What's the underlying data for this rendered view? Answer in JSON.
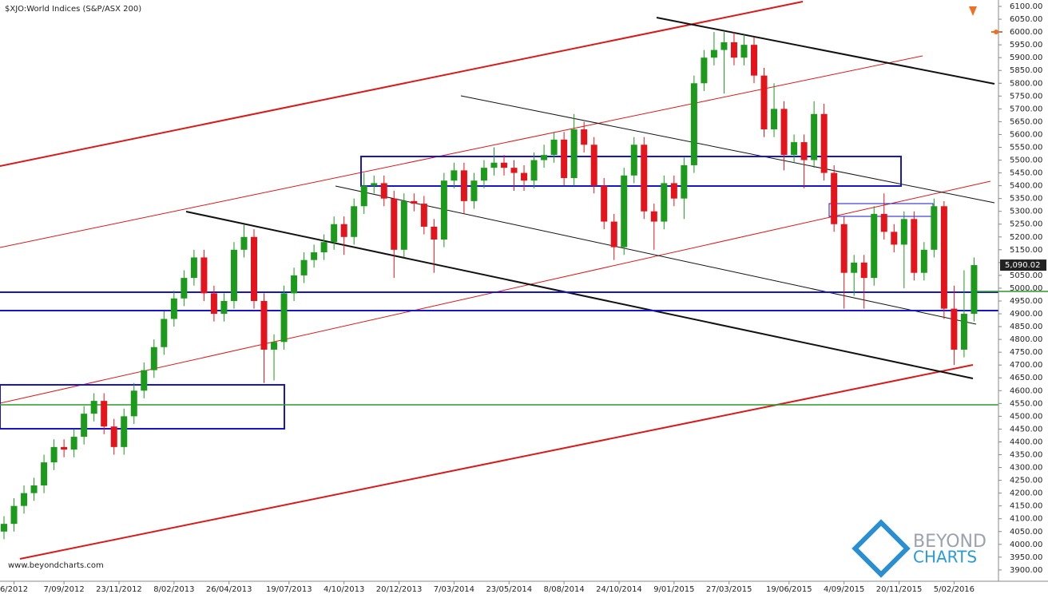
{
  "chart_data": {
    "type": "candlestick",
    "title": "$XJO:World Indices (S&P/ASX 200)",
    "watermark": "www.beyondcharts.com",
    "logo": [
      "BEYOND",
      "CHARTS"
    ],
    "up_color": "#1b9a1b",
    "down_color": "#e3141b",
    "open": [
      4050,
      4080,
      4150,
      4200,
      4230,
      4320,
      4380,
      4370,
      4420,
      4510,
      4560,
      4460,
      4380,
      4500,
      4600,
      4680,
      4770,
      4880,
      4960,
      5040,
      5120,
      4980,
      4900,
      4950,
      5150,
      5200,
      4950,
      4760,
      4790,
      4980,
      5050,
      5110,
      5140,
      5180,
      5250,
      5200,
      5320,
      5400,
      5410,
      5350,
      5150,
      5340,
      5330,
      5240,
      5190,
      5420,
      5460,
      5340,
      5420,
      5470,
      5490,
      5470,
      5450,
      5420,
      5500,
      5520,
      5580,
      5430,
      5620,
      5560,
      5400,
      5260,
      5160,
      5440,
      5560,
      5300,
      5260,
      5410,
      5350,
      5480,
      5800,
      5900,
      5930,
      5960,
      5900,
      5950,
      5830,
      5620,
      5700,
      5520,
      5570,
      5500,
      5680,
      5450,
      5250,
      5060,
      5100,
      5040,
      5290,
      5220,
      5170,
      5270,
      5060,
      5150,
      5320,
      4920,
      4760,
      4900
    ],
    "high": [
      4110,
      4180,
      4230,
      4260,
      4350,
      4410,
      4410,
      4450,
      4540,
      4590,
      4590,
      4490,
      4530,
      4630,
      4710,
      4800,
      4910,
      4990,
      5070,
      5150,
      5150,
      5010,
      4980,
      5180,
      5250,
      5230,
      4980,
      4820,
      5010,
      5080,
      5140,
      5170,
      5210,
      5280,
      5280,
      5350,
      5450,
      5440,
      5440,
      5380,
      5370,
      5370,
      5360,
      5270,
      5450,
      5490,
      5490,
      5450,
      5500,
      5550,
      5520,
      5500,
      5480,
      5530,
      5560,
      5610,
      5610,
      5680,
      5650,
      5590,
      5430,
      5290,
      5470,
      5590,
      5590,
      5330,
      5440,
      5440,
      5510,
      5830,
      5930,
      6000,
      6000,
      6000,
      5990,
      5980,
      5860,
      5800,
      5730,
      5600,
      5600,
      5730,
      5720,
      5480,
      5280,
      5130,
      5130,
      5320,
      5370,
      5250,
      5300,
      5300,
      5180,
      5350,
      5340,
      5010,
      5070,
      5120
    ],
    "low": [
      4020,
      4050,
      4120,
      4170,
      4200,
      4290,
      4340,
      4340,
      4390,
      4480,
      4430,
      4350,
      4350,
      4470,
      4570,
      4650,
      4740,
      4850,
      4930,
      5010,
      4950,
      4870,
      4870,
      4920,
      5120,
      4920,
      4630,
      4640,
      4760,
      4950,
      5020,
      5080,
      5110,
      5150,
      5130,
      5170,
      5290,
      5370,
      5320,
      5040,
      5120,
      5300,
      5210,
      5060,
      5160,
      5390,
      5290,
      5310,
      5390,
      5440,
      5440,
      5380,
      5380,
      5390,
      5470,
      5490,
      5400,
      5400,
      5530,
      5370,
      5230,
      5110,
      5130,
      5410,
      5270,
      5150,
      5230,
      5320,
      5270,
      5450,
      5770,
      5870,
      5760,
      5870,
      5870,
      5800,
      5590,
      5590,
      5460,
      5490,
      5390,
      5470,
      5420,
      5220,
      4920,
      4970,
      4920,
      5010,
      5190,
      5140,
      5000,
      5030,
      5030,
      5120,
      4880,
      4700,
      4730,
      4870
    ],
    "close": [
      4080,
      4150,
      4200,
      4230,
      4320,
      4380,
      4370,
      4420,
      4510,
      4560,
      4460,
      4380,
      4500,
      4600,
      4680,
      4770,
      4880,
      4960,
      5040,
      5120,
      4980,
      4900,
      4950,
      5150,
      5200,
      4950,
      4760,
      4790,
      4980,
      5050,
      5110,
      5140,
      5180,
      5250,
      5200,
      5320,
      5400,
      5410,
      5350,
      5150,
      5340,
      5330,
      5240,
      5190,
      5420,
      5460,
      5340,
      5420,
      5470,
      5490,
      5470,
      5450,
      5420,
      5500,
      5520,
      5580,
      5430,
      5620,
      5560,
      5400,
      5260,
      5160,
      5440,
      5560,
      5300,
      5260,
      5410,
      5350,
      5480,
      5800,
      5900,
      5930,
      5960,
      5900,
      5950,
      5830,
      5620,
      5700,
      5520,
      5570,
      5500,
      5680,
      5450,
      5250,
      5060,
      5100,
      5040,
      5290,
      5220,
      5170,
      5270,
      5060,
      5150,
      5320,
      4920,
      4760,
      4900,
      5090.02
    ],
    "last_price": {
      "value": 5090.02,
      "label": "5,090.02"
    },
    "xticks": [
      {
        "value": 1,
        "label": "6/2012"
      },
      {
        "value": 6,
        "label": "7/09/2012"
      },
      {
        "value": 11.5,
        "label": "23/11/2012"
      },
      {
        "value": 17,
        "label": "8/02/2013"
      },
      {
        "value": 22.5,
        "label": "26/04/2013"
      },
      {
        "value": 28.5,
        "label": "19/07/2013"
      },
      {
        "value": 34,
        "label": "4/10/2013"
      },
      {
        "value": 39.5,
        "label": "20/12/2013"
      },
      {
        "value": 45,
        "label": "7/03/2014"
      },
      {
        "value": 50.5,
        "label": "23/05/2014"
      },
      {
        "value": 56,
        "label": "8/08/2014"
      },
      {
        "value": 61.5,
        "label": "24/10/2014"
      },
      {
        "value": 67,
        "label": "9/01/2015"
      },
      {
        "value": 72.5,
        "label": "27/03/2015"
      },
      {
        "value": 78.5,
        "label": "19/06/2015"
      },
      {
        "value": 84,
        "label": "4/09/2015"
      },
      {
        "value": 89.5,
        "label": "20/11/2015"
      },
      {
        "value": 95,
        "label": "5/02/2016"
      }
    ],
    "ylim": [
      3856,
      6125
    ],
    "yticks": [
      {
        "value": 3900,
        "label": "3900.00"
      },
      {
        "value": 3950,
        "label": "3950.00"
      },
      {
        "value": 4000,
        "label": "4000.00"
      },
      {
        "value": 4050,
        "label": "4050.00"
      },
      {
        "value": 4100,
        "label": "4100.00"
      },
      {
        "value": 4150,
        "label": "4150.00"
      },
      {
        "value": 4200,
        "label": "4200.00"
      },
      {
        "value": 4250,
        "label": "4250.00"
      },
      {
        "value": 4300,
        "label": "4300.00"
      },
      {
        "value": 4350,
        "label": "4350.00"
      },
      {
        "value": 4400,
        "label": "4400.00"
      },
      {
        "value": 4450,
        "label": "4450.00"
      },
      {
        "value": 4500,
        "label": "4500.00"
      },
      {
        "value": 4550,
        "label": "4550.00"
      },
      {
        "value": 4600,
        "label": "4600.00"
      },
      {
        "value": 4650,
        "label": "4650.00"
      },
      {
        "value": 4700,
        "label": "4700.00"
      },
      {
        "value": 4750,
        "label": "4750.00"
      },
      {
        "value": 4800,
        "label": "4800.00"
      },
      {
        "value": 4850,
        "label": "4850.00"
      },
      {
        "value": 4900,
        "label": "4900.00"
      },
      {
        "value": 4950,
        "label": "4950.00"
      },
      {
        "value": 5000,
        "label": "5000.00"
      },
      {
        "value": 5050,
        "label": "5050.00"
      },
      {
        "value": 5100,
        "label": "5100.00"
      },
      {
        "value": 5150,
        "label": "5150.00"
      },
      {
        "value": 5200,
        "label": "5200.00"
      },
      {
        "value": 5250,
        "label": "5250.00"
      },
      {
        "value": 5300,
        "label": "5300.00"
      },
      {
        "value": 5350,
        "label": "5350.00"
      },
      {
        "value": 5400,
        "label": "5400.00"
      },
      {
        "value": 5450,
        "label": "5450.00"
      },
      {
        "value": 5500,
        "label": "5500.00"
      },
      {
        "value": 5550,
        "label": "5550.00"
      },
      {
        "value": 5600,
        "label": "5600.00"
      },
      {
        "value": 5650,
        "label": "5650.00"
      },
      {
        "value": 5700,
        "label": "5700.00"
      },
      {
        "value": 5750,
        "label": "5750.00"
      },
      {
        "value": 5800,
        "label": "5800.00"
      },
      {
        "value": 5850,
        "label": "5850.00"
      },
      {
        "value": 5900,
        "label": "5900.00"
      },
      {
        "value": 5950,
        "label": "5950.00"
      },
      {
        "value": 6000,
        "label": "6000.00"
      },
      {
        "value": 6050,
        "label": "6050.00"
      },
      {
        "value": 6100,
        "label": "6100.00"
      }
    ]
  }
}
